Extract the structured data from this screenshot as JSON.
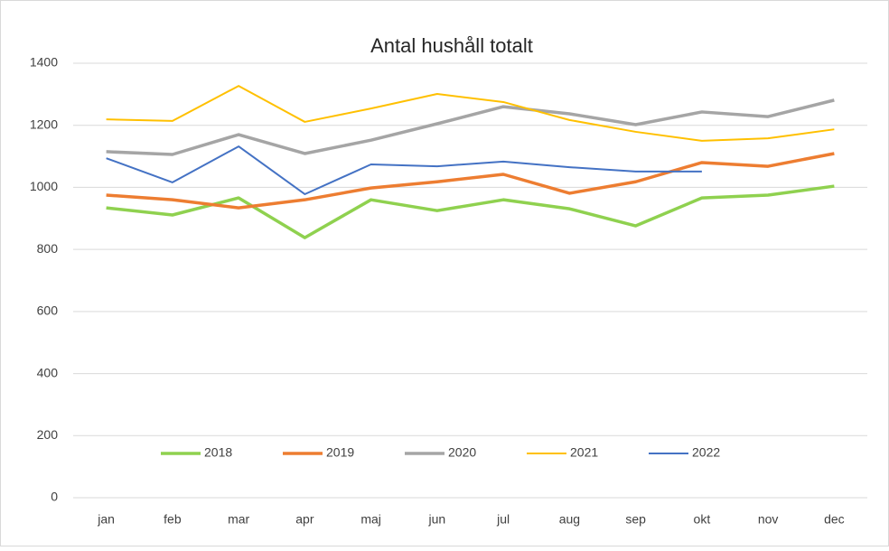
{
  "chart_data": {
    "type": "line",
    "title": "Antal hushåll totalt",
    "categories": [
      "jan",
      "feb",
      "mar",
      "apr",
      "maj",
      "jun",
      "jul",
      "aug",
      "sep",
      "okt",
      "nov",
      "dec"
    ],
    "series": [
      {
        "name": "2018",
        "color": "#8fd14f",
        "values": [
          934,
          911,
          966,
          838,
          960,
          925,
          960,
          931,
          876,
          966,
          975,
          1004
        ]
      },
      {
        "name": "2019",
        "color": "#ed7d31",
        "values": [
          975,
          960,
          934,
          960,
          998,
          1018,
          1042,
          981,
          1018,
          1080,
          1068,
          1109
        ]
      },
      {
        "name": "2020",
        "color": "#a5a5a5",
        "values": [
          1115,
          1106,
          1170,
          1109,
          1152,
          1205,
          1260,
          1237,
          1202,
          1243,
          1228,
          1281
        ]
      },
      {
        "name": "2021",
        "color": "#ffc000",
        "values": [
          1219,
          1214,
          1327,
          1211,
          1254,
          1301,
          1275,
          1217,
          1179,
          1150,
          1158,
          1187
        ]
      },
      {
        "name": "2022",
        "color": "#4472c4",
        "values": [
          1094,
          1016,
          1132,
          978,
          1074,
          1068,
          1083,
          1065,
          1051,
          1051,
          null,
          null
        ]
      }
    ],
    "ylim": [
      0,
      1400
    ],
    "yticks": [
      0,
      200,
      400,
      600,
      800,
      1000,
      1200,
      1400
    ],
    "grid": true,
    "legend": "bottom"
  }
}
